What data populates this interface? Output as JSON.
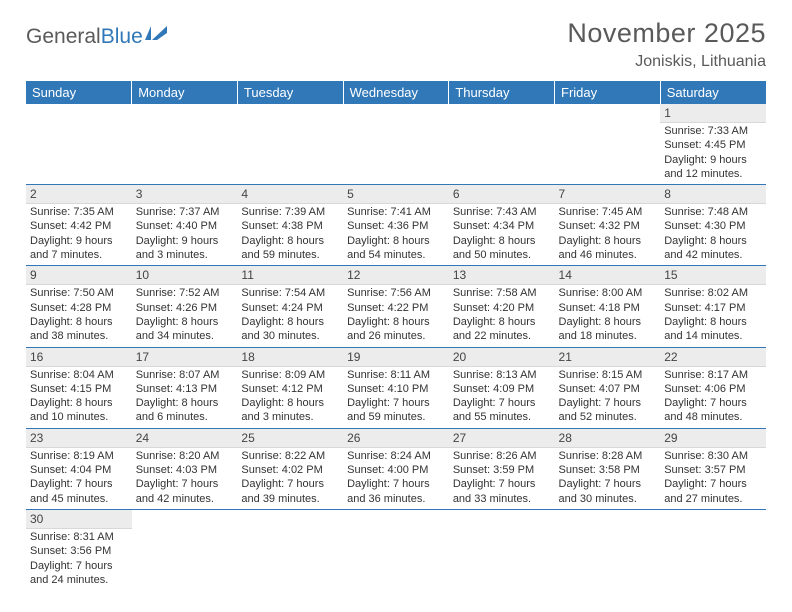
{
  "logo": {
    "part1": "General",
    "part2": "Blue",
    "icon_color": "#3178b8"
  },
  "title": "November 2025",
  "location": "Joniskis, Lithuania",
  "colors": {
    "header_bg": "#3178b8",
    "header_text": "#ffffff",
    "daynum_bg": "#ececec",
    "row_divider": "#3178b8",
    "body_text": "#333333",
    "title_text": "#5a5a5a"
  },
  "daysOfWeek": [
    "Sunday",
    "Monday",
    "Tuesday",
    "Wednesday",
    "Thursday",
    "Friday",
    "Saturday"
  ],
  "startOffset": 6,
  "days": [
    {
      "n": 1,
      "sunrise": "7:33 AM",
      "sunset": "4:45 PM",
      "daylight": "9 hours and 12 minutes."
    },
    {
      "n": 2,
      "sunrise": "7:35 AM",
      "sunset": "4:42 PM",
      "daylight": "9 hours and 7 minutes."
    },
    {
      "n": 3,
      "sunrise": "7:37 AM",
      "sunset": "4:40 PM",
      "daylight": "9 hours and 3 minutes."
    },
    {
      "n": 4,
      "sunrise": "7:39 AM",
      "sunset": "4:38 PM",
      "daylight": "8 hours and 59 minutes."
    },
    {
      "n": 5,
      "sunrise": "7:41 AM",
      "sunset": "4:36 PM",
      "daylight": "8 hours and 54 minutes."
    },
    {
      "n": 6,
      "sunrise": "7:43 AM",
      "sunset": "4:34 PM",
      "daylight": "8 hours and 50 minutes."
    },
    {
      "n": 7,
      "sunrise": "7:45 AM",
      "sunset": "4:32 PM",
      "daylight": "8 hours and 46 minutes."
    },
    {
      "n": 8,
      "sunrise": "7:48 AM",
      "sunset": "4:30 PM",
      "daylight": "8 hours and 42 minutes."
    },
    {
      "n": 9,
      "sunrise": "7:50 AM",
      "sunset": "4:28 PM",
      "daylight": "8 hours and 38 minutes."
    },
    {
      "n": 10,
      "sunrise": "7:52 AM",
      "sunset": "4:26 PM",
      "daylight": "8 hours and 34 minutes."
    },
    {
      "n": 11,
      "sunrise": "7:54 AM",
      "sunset": "4:24 PM",
      "daylight": "8 hours and 30 minutes."
    },
    {
      "n": 12,
      "sunrise": "7:56 AM",
      "sunset": "4:22 PM",
      "daylight": "8 hours and 26 minutes."
    },
    {
      "n": 13,
      "sunrise": "7:58 AM",
      "sunset": "4:20 PM",
      "daylight": "8 hours and 22 minutes."
    },
    {
      "n": 14,
      "sunrise": "8:00 AM",
      "sunset": "4:18 PM",
      "daylight": "8 hours and 18 minutes."
    },
    {
      "n": 15,
      "sunrise": "8:02 AM",
      "sunset": "4:17 PM",
      "daylight": "8 hours and 14 minutes."
    },
    {
      "n": 16,
      "sunrise": "8:04 AM",
      "sunset": "4:15 PM",
      "daylight": "8 hours and 10 minutes."
    },
    {
      "n": 17,
      "sunrise": "8:07 AM",
      "sunset": "4:13 PM",
      "daylight": "8 hours and 6 minutes."
    },
    {
      "n": 18,
      "sunrise": "8:09 AM",
      "sunset": "4:12 PM",
      "daylight": "8 hours and 3 minutes."
    },
    {
      "n": 19,
      "sunrise": "8:11 AM",
      "sunset": "4:10 PM",
      "daylight": "7 hours and 59 minutes."
    },
    {
      "n": 20,
      "sunrise": "8:13 AM",
      "sunset": "4:09 PM",
      "daylight": "7 hours and 55 minutes."
    },
    {
      "n": 21,
      "sunrise": "8:15 AM",
      "sunset": "4:07 PM",
      "daylight": "7 hours and 52 minutes."
    },
    {
      "n": 22,
      "sunrise": "8:17 AM",
      "sunset": "4:06 PM",
      "daylight": "7 hours and 48 minutes."
    },
    {
      "n": 23,
      "sunrise": "8:19 AM",
      "sunset": "4:04 PM",
      "daylight": "7 hours and 45 minutes."
    },
    {
      "n": 24,
      "sunrise": "8:20 AM",
      "sunset": "4:03 PM",
      "daylight": "7 hours and 42 minutes."
    },
    {
      "n": 25,
      "sunrise": "8:22 AM",
      "sunset": "4:02 PM",
      "daylight": "7 hours and 39 minutes."
    },
    {
      "n": 26,
      "sunrise": "8:24 AM",
      "sunset": "4:00 PM",
      "daylight": "7 hours and 36 minutes."
    },
    {
      "n": 27,
      "sunrise": "8:26 AM",
      "sunset": "3:59 PM",
      "daylight": "7 hours and 33 minutes."
    },
    {
      "n": 28,
      "sunrise": "8:28 AM",
      "sunset": "3:58 PM",
      "daylight": "7 hours and 30 minutes."
    },
    {
      "n": 29,
      "sunrise": "8:30 AM",
      "sunset": "3:57 PM",
      "daylight": "7 hours and 27 minutes."
    },
    {
      "n": 30,
      "sunrise": "8:31 AM",
      "sunset": "3:56 PM",
      "daylight": "7 hours and 24 minutes."
    }
  ],
  "labels": {
    "sunrise": "Sunrise:",
    "sunset": "Sunset:",
    "daylight": "Daylight:"
  }
}
